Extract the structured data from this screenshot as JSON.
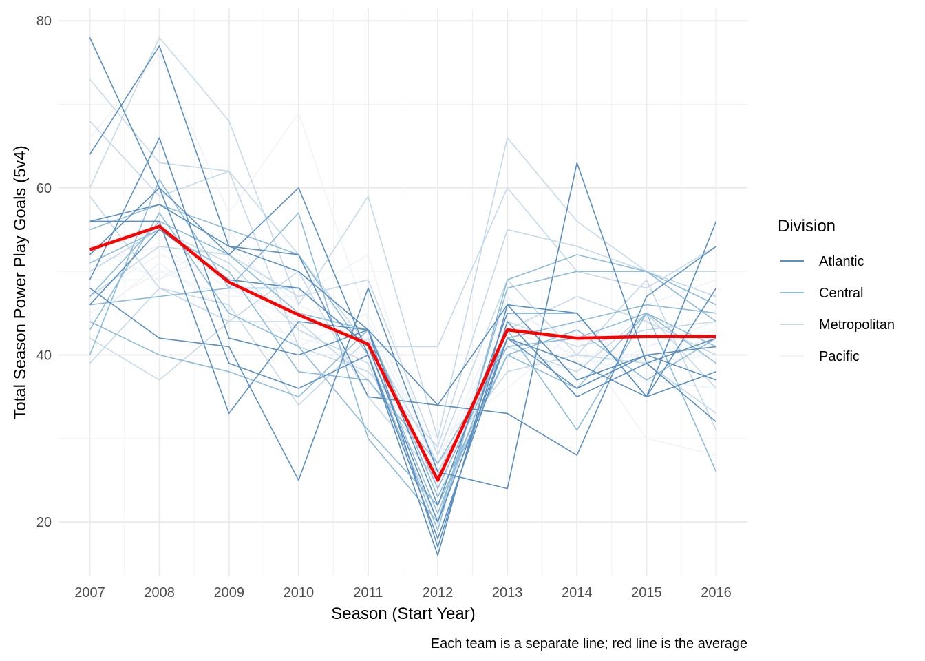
{
  "chart_data": {
    "type": "line",
    "xlabel": "Season (Start Year)",
    "ylabel": "Total Season Power Play Goals (5v4)",
    "caption": "Each team is a separate line; red line is the average",
    "x": [
      2007,
      2008,
      2009,
      2010,
      2011,
      2012,
      2013,
      2014,
      2015,
      2016
    ],
    "xlim": [
      2006.55,
      2016.45
    ],
    "ylim": [
      13.5,
      81.5
    ],
    "y_ticks": [
      20,
      40,
      60,
      80
    ],
    "grid": true,
    "legend": {
      "title": "Division",
      "placement": "right",
      "entries": [
        {
          "label": "Atlantic",
          "color": "#5b8fbf"
        },
        {
          "label": "Central",
          "color": "#8fbcd9"
        },
        {
          "label": "Metropolitan",
          "color": "#c6d9ea"
        },
        {
          "label": "Pacific",
          "color": "#eef3f9"
        }
      ]
    },
    "average": {
      "color": "#ff0000",
      "values": [
        52.6,
        55.4,
        48.7,
        44.8,
        41.3,
        25,
        43,
        42,
        42.2,
        42.2
      ]
    },
    "teams": [
      {
        "division": "Atlantic",
        "values": [
          78,
          60,
          52,
          60,
          40,
          16,
          46,
          45,
          35,
          56
        ]
      },
      {
        "division": "Atlantic",
        "values": [
          56,
          56,
          33,
          44,
          43,
          34,
          46,
          37,
          40,
          41
        ]
      },
      {
        "division": "Atlantic",
        "values": [
          49,
          66,
          42,
          40,
          43,
          22,
          45,
          45,
          35,
          48
        ]
      },
      {
        "division": "Atlantic",
        "values": [
          64,
          77,
          53,
          52,
          35,
          34,
          33,
          28,
          47,
          53
        ]
      },
      {
        "division": "Atlantic",
        "values": [
          48,
          42,
          41,
          25,
          48,
          26,
          24,
          63,
          39,
          32
        ]
      },
      {
        "division": "Atlantic",
        "values": [
          52,
          60,
          39,
          36,
          40,
          18,
          42,
          39,
          35,
          38
        ]
      },
      {
        "division": "Atlantic",
        "values": [
          56,
          58,
          53,
          50,
          43,
          17,
          44,
          35,
          39,
          42
        ]
      },
      {
        "division": "Atlantic",
        "values": [
          46,
          55,
          49,
          48,
          41,
          20,
          42,
          36,
          40,
          37
        ]
      },
      {
        "division": "Central",
        "values": [
          55,
          58,
          55,
          52,
          40,
          19,
          49,
          52,
          50,
          46
        ]
      },
      {
        "division": "Central",
        "values": [
          40,
          61,
          48,
          57,
          30,
          20,
          48,
          50,
          50,
          44
        ]
      },
      {
        "division": "Central",
        "values": [
          44,
          40,
          38,
          35,
          43,
          23,
          40,
          36,
          45,
          39
        ]
      },
      {
        "division": "Central",
        "values": [
          46,
          47,
          48,
          48,
          41,
          21,
          43,
          31,
          45,
          41
        ]
      },
      {
        "division": "Central",
        "values": [
          51,
          55,
          50,
          38,
          37,
          27,
          41,
          42,
          45,
          26
        ]
      },
      {
        "division": "Central",
        "values": [
          47,
          56,
          52,
          45,
          43,
          24,
          42,
          44,
          46,
          45
        ]
      },
      {
        "division": "Central",
        "values": [
          43,
          57,
          45,
          41,
          31,
          22,
          40,
          43,
          37,
          42
        ]
      },
      {
        "division": "Metropolitan",
        "values": [
          60,
          78,
          68,
          46,
          59,
          30,
          66,
          56,
          50,
          47
        ]
      },
      {
        "division": "Metropolitan",
        "values": [
          68,
          59,
          62,
          52,
          41,
          41,
          60,
          50,
          48,
          53
        ]
      },
      {
        "division": "Metropolitan",
        "values": [
          73,
          63,
          62,
          41,
          38,
          29,
          55,
          53,
          50,
          50
        ]
      },
      {
        "division": "Metropolitan",
        "values": [
          47,
          53,
          52,
          47,
          49,
          28,
          49,
          40,
          49,
          31
        ]
      },
      {
        "division": "Metropolitan",
        "values": [
          42,
          37,
          44,
          44,
          37,
          26,
          41,
          38,
          45,
          36
        ]
      },
      {
        "division": "Metropolitan",
        "values": [
          39,
          48,
          46,
          34,
          42,
          27,
          38,
          40,
          39,
          33
        ]
      },
      {
        "division": "Metropolitan",
        "values": [
          59,
          48,
          44,
          50,
          35,
          25,
          43,
          47,
          44,
          40
        ]
      },
      {
        "division": "Metropolitan",
        "values": [
          50,
          55,
          51,
          43,
          39,
          20,
          44,
          41,
          43,
          44
        ]
      },
      {
        "division": "Pacific",
        "values": [
          66,
          76,
          57,
          69,
          44,
          26,
          45,
          42,
          30,
          28
        ]
      },
      {
        "division": "Pacific",
        "values": [
          45,
          50,
          47,
          47,
          52,
          25,
          40,
          38,
          46,
          49
        ]
      },
      {
        "division": "Pacific",
        "values": [
          53,
          49,
          55,
          43,
          38,
          30,
          36,
          43,
          39,
          40
        ]
      },
      {
        "division": "Pacific",
        "values": [
          47,
          52,
          49,
          41,
          45,
          27,
          46,
          37,
          41,
          43
        ]
      },
      {
        "division": "Pacific",
        "values": [
          49,
          49,
          53,
          46,
          42,
          23,
          47,
          39,
          40,
          42
        ]
      },
      {
        "division": "Pacific",
        "values": [
          44,
          51,
          45,
          42,
          40,
          24,
          43,
          40,
          37,
          36
        ]
      },
      {
        "division": "Pacific",
        "values": [
          51,
          53,
          48,
          44,
          43,
          28,
          41,
          44,
          41,
          44
        ]
      }
    ]
  }
}
